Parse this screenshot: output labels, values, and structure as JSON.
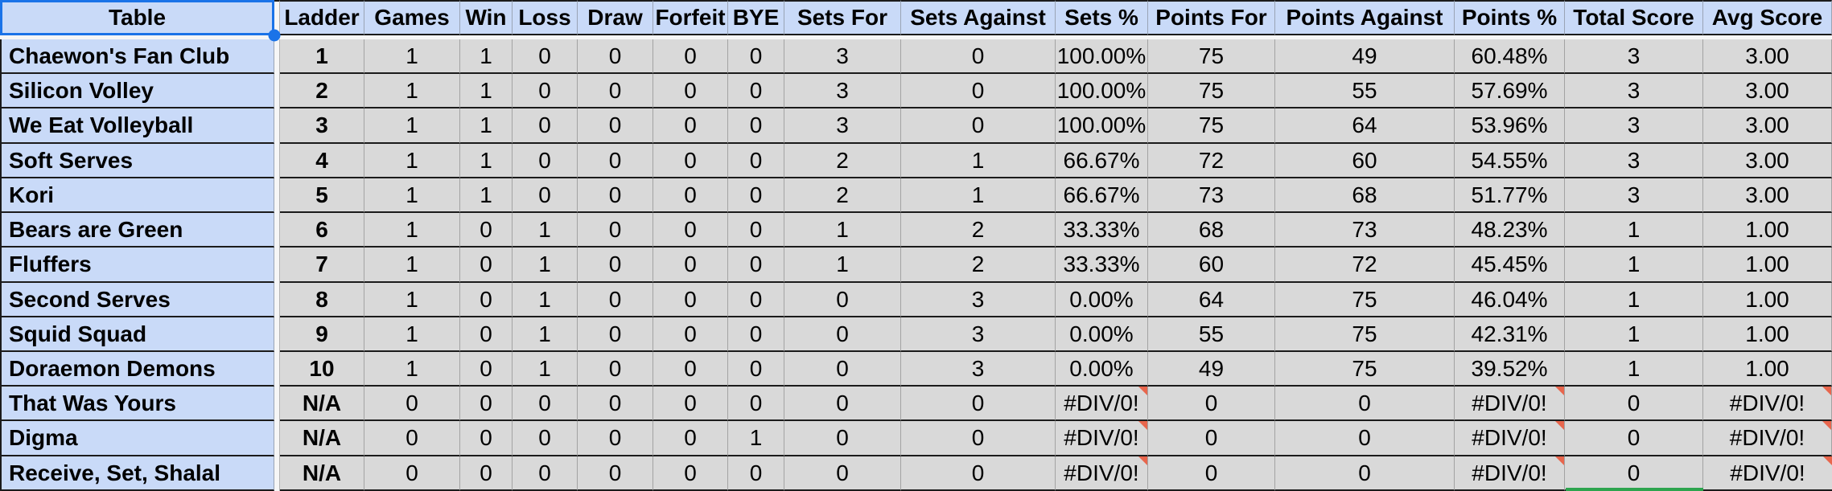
{
  "table": {
    "header": {
      "table_col": "Table",
      "stat_cols": [
        "Ladder",
        "Games",
        "Win",
        "Loss",
        "Draw",
        "Forfeit",
        "BYE",
        "Sets For",
        "Sets Against",
        "Sets %",
        "Points For",
        "Points Against",
        "Points %",
        "Total Score",
        "Avg Score"
      ]
    },
    "rows": [
      {
        "team": "Chaewon's Fan Club",
        "values": [
          "1",
          "1",
          "1",
          "0",
          "0",
          "0",
          "0",
          "3",
          "0",
          "100.00%",
          "75",
          "49",
          "60.48%",
          "3",
          "3.00"
        ],
        "has_errors": false
      },
      {
        "team": "Silicon Volley",
        "values": [
          "2",
          "1",
          "1",
          "0",
          "0",
          "0",
          "0",
          "3",
          "0",
          "100.00%",
          "75",
          "55",
          "57.69%",
          "3",
          "3.00"
        ],
        "has_errors": false
      },
      {
        "team": "We Eat Volleyball",
        "values": [
          "3",
          "1",
          "1",
          "0",
          "0",
          "0",
          "0",
          "3",
          "0",
          "100.00%",
          "75",
          "64",
          "53.96%",
          "3",
          "3.00"
        ],
        "has_errors": false
      },
      {
        "team": "Soft Serves",
        "values": [
          "4",
          "1",
          "1",
          "0",
          "0",
          "0",
          "0",
          "2",
          "1",
          "66.67%",
          "72",
          "60",
          "54.55%",
          "3",
          "3.00"
        ],
        "has_errors": false
      },
      {
        "team": "Kori",
        "values": [
          "5",
          "1",
          "1",
          "0",
          "0",
          "0",
          "0",
          "2",
          "1",
          "66.67%",
          "73",
          "68",
          "51.77%",
          "3",
          "3.00"
        ],
        "has_errors": false
      },
      {
        "team": "Bears are Green",
        "values": [
          "6",
          "1",
          "0",
          "1",
          "0",
          "0",
          "0",
          "1",
          "2",
          "33.33%",
          "68",
          "73",
          "48.23%",
          "1",
          "1.00"
        ],
        "has_errors": false
      },
      {
        "team": "Fluffers",
        "values": [
          "7",
          "1",
          "0",
          "1",
          "0",
          "0",
          "0",
          "1",
          "2",
          "33.33%",
          "60",
          "72",
          "45.45%",
          "1",
          "1.00"
        ],
        "has_errors": false
      },
      {
        "team": "Second Serves",
        "values": [
          "8",
          "1",
          "0",
          "1",
          "0",
          "0",
          "0",
          "0",
          "3",
          "0.00%",
          "64",
          "75",
          "46.04%",
          "1",
          "1.00"
        ],
        "has_errors": false
      },
      {
        "team": "Squid Squad",
        "values": [
          "9",
          "1",
          "0",
          "1",
          "0",
          "0",
          "0",
          "0",
          "3",
          "0.00%",
          "55",
          "75",
          "42.31%",
          "1",
          "1.00"
        ],
        "has_errors": false
      },
      {
        "team": "Doraemon Demons",
        "values": [
          "10",
          "1",
          "0",
          "1",
          "0",
          "0",
          "0",
          "0",
          "3",
          "0.00%",
          "49",
          "75",
          "39.52%",
          "1",
          "1.00"
        ],
        "has_errors": false
      },
      {
        "team": "That Was Yours",
        "values": [
          "N/A",
          "0",
          "0",
          "0",
          "0",
          "0",
          "0",
          "0",
          "0",
          "#DIV/0!",
          "0",
          "0",
          "#DIV/0!",
          "0",
          "#DIV/0!"
        ],
        "has_errors": true
      },
      {
        "team": "Digma",
        "values": [
          "N/A",
          "0",
          "0",
          "0",
          "0",
          "0",
          "1",
          "0",
          "0",
          "#DIV/0!",
          "0",
          "0",
          "#DIV/0!",
          "0",
          "#DIV/0!"
        ],
        "has_errors": true
      },
      {
        "team": "Receive, Set, Shalal",
        "values": [
          "N/A",
          "0",
          "0",
          "0",
          "0",
          "0",
          "0",
          "0",
          "0",
          "#DIV/0!",
          "0",
          "0",
          "#DIV/0!",
          "0",
          "#DIV/0!"
        ],
        "has_errors": true
      }
    ],
    "error_value": "#DIV/0!",
    "error_columns": [
      "Sets %",
      "Points %",
      "Avg Score"
    ]
  },
  "selection": {
    "selected_header_cell": "Table"
  },
  "colors": {
    "frozen_header_bg": "#c9daf8",
    "data_cell_bg": "#d9d9d9",
    "selection_blue": "#1a73e8",
    "error_marker_red": "#e8664d",
    "remote_cursor_green": "#2da44e",
    "row_border": "#1b1b1b"
  }
}
